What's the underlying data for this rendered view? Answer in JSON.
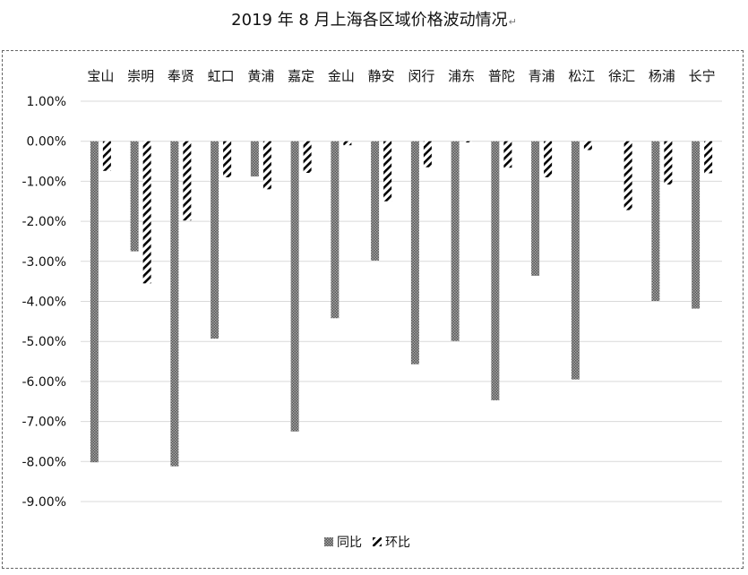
{
  "chart_data": {
    "type": "bar",
    "title": "2019 年 8 月上海各区域价格波动情况",
    "categories": [
      "宝山",
      "崇明",
      "奉贤",
      "虹口",
      "黄浦",
      "嘉定",
      "金山",
      "静安",
      "闵行",
      "浦东",
      "普陀",
      "青浦",
      "松江",
      "徐汇",
      "杨浦",
      "长宁"
    ],
    "series": [
      {
        "name": "同比",
        "values": [
          -8.02,
          -2.75,
          -8.12,
          -4.93,
          -0.88,
          -7.25,
          -4.42,
          -2.98,
          -5.57,
          -4.99,
          -6.47,
          -3.36,
          -5.95,
          0.0,
          -3.99,
          -4.18
        ]
      },
      {
        "name": "环比",
        "values": [
          -0.74,
          -3.55,
          -1.98,
          -0.9,
          -1.2,
          -0.79,
          -0.1,
          -1.5,
          -0.65,
          -0.03,
          -0.66,
          -0.9,
          -0.22,
          -1.72,
          -1.08,
          -0.8
        ]
      }
    ],
    "ylim": [
      -9.0,
      1.0
    ],
    "yticks": [
      "1.00%",
      "0.00%",
      "-1.00%",
      "-2.00%",
      "-3.00%",
      "-4.00%",
      "-5.00%",
      "-6.00%",
      "-7.00%",
      "-8.00%",
      "-9.00%"
    ],
    "xlabel": "",
    "ylabel": "",
    "grid": true,
    "legend_position": "bottom",
    "category_axis_position": "top"
  },
  "colors": {
    "series1": "#808080",
    "series2": "#000000",
    "grid": "#d9d9d9",
    "border": "#666666"
  }
}
